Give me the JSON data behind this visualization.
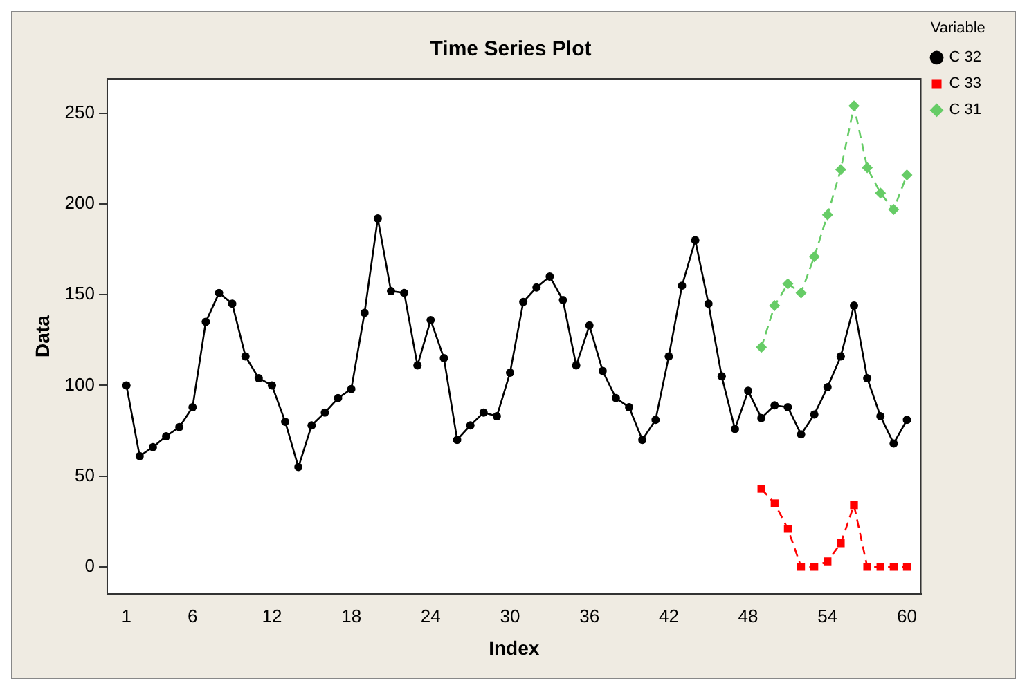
{
  "chart_data": {
    "type": "line",
    "title": "Time Series Plot",
    "xlabel": "Index",
    "ylabel": "Data",
    "legend_title": "Variable",
    "legend": "top right",
    "grid": false,
    "x": [
      1,
      2,
      3,
      4,
      5,
      6,
      7,
      8,
      9,
      10,
      11,
      12,
      13,
      14,
      15,
      16,
      17,
      18,
      19,
      20,
      21,
      22,
      23,
      24,
      25,
      26,
      27,
      28,
      29,
      30,
      31,
      32,
      33,
      34,
      35,
      36,
      37,
      38,
      39,
      40,
      41,
      42,
      43,
      44,
      45,
      46,
      47,
      48,
      49,
      50,
      51,
      52,
      53,
      54,
      55,
      56,
      57,
      58,
      59,
      60
    ],
    "xlim": [
      -0.45,
      61.05
    ],
    "xticks": [
      1,
      6,
      12,
      18,
      24,
      30,
      36,
      42,
      48,
      54,
      60
    ],
    "ylim": [
      -15,
      269
    ],
    "yticks": [
      0,
      50,
      100,
      150,
      200,
      250
    ],
    "series": [
      {
        "name": "C 32",
        "color": "#000000",
        "marker": "circle",
        "line_style": "solid",
        "values": [
          100,
          61,
          66,
          72,
          77,
          88,
          135,
          151,
          145,
          116,
          104,
          100,
          80,
          55,
          78,
          85,
          93,
          98,
          140,
          192,
          152,
          151,
          111,
          136,
          115,
          70,
          78,
          85,
          83,
          107,
          146,
          154,
          160,
          147,
          111,
          133,
          108,
          93,
          88,
          70,
          81,
          116,
          155,
          180,
          145,
          105,
          76,
          97,
          82,
          89,
          88,
          73,
          84,
          99,
          116,
          144,
          104,
          83,
          68,
          81
        ]
      },
      {
        "name": "C 33",
        "color": "#ff0000",
        "marker": "square",
        "line_style": "dashed",
        "x": [
          49,
          50,
          51,
          52,
          53,
          54,
          55,
          56,
          57,
          58,
          59,
          60
        ],
        "values": [
          43,
          35,
          21,
          0,
          0,
          3,
          13,
          34,
          0,
          0,
          0,
          0
        ]
      },
      {
        "name": "C 31",
        "color": "#66cc66",
        "marker": "diamond",
        "line_style": "dashed",
        "x": [
          49,
          50,
          51,
          52,
          53,
          54,
          55,
          56,
          57,
          58,
          59,
          60
        ],
        "values": [
          121,
          144,
          156,
          151,
          171,
          194,
          219,
          254,
          220,
          206,
          197,
          216
        ]
      }
    ]
  }
}
